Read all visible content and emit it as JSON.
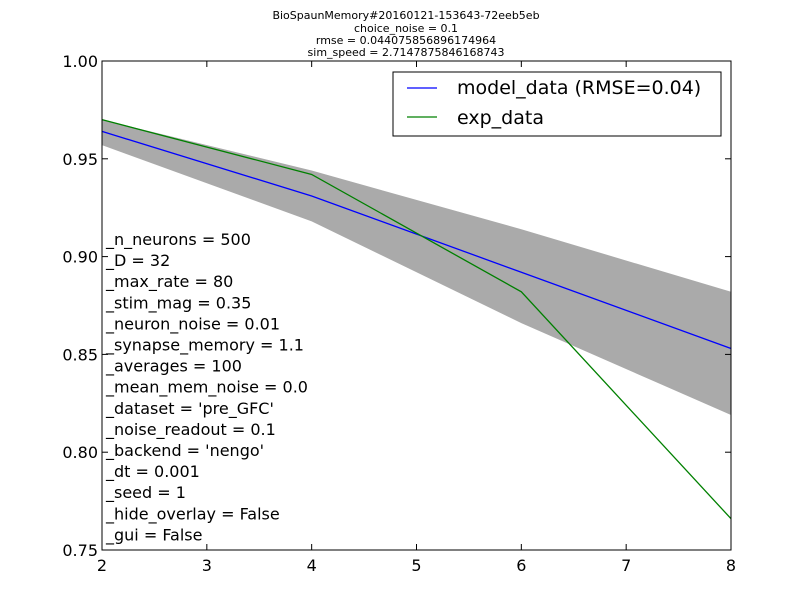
{
  "title_lines": [
    "BioSpaunMemory#20160121-153643-72eeb5eb",
    "choice_noise = 0.1",
    "rmse = 0.044075856896174964",
    "sim_speed = 2.7147875846168743"
  ],
  "params": [
    "_n_neurons = 500",
    "_D = 32",
    "_max_rate = 80",
    "_stim_mag = 0.35",
    "_neuron_noise = 0.01",
    "_synapse_memory = 1.1",
    "_averages = 100",
    "_mean_mem_noise = 0.0",
    "_dataset = 'pre_GFC'",
    "_noise_readout = 0.1",
    "_backend = 'nengo'",
    "_dt = 0.001",
    "_seed = 1",
    "_hide_overlay = False",
    "_gui = False"
  ],
  "chart_data": {
    "type": "line",
    "xlim": [
      2,
      8
    ],
    "ylim": [
      0.75,
      1.0
    ],
    "xticks": [
      2,
      3,
      4,
      5,
      6,
      7,
      8
    ],
    "yticks": [
      0.75,
      0.8,
      0.85,
      0.9,
      0.95,
      1.0
    ],
    "xtick_labels": [
      "2",
      "3",
      "4",
      "5",
      "6",
      "7",
      "8"
    ],
    "ytick_labels": [
      "0.75",
      "0.80",
      "0.85",
      "0.90",
      "0.95",
      "1.00"
    ],
    "grid": false,
    "legend_position": "top-right",
    "band": {
      "color": "#aaaaaa",
      "x": [
        2,
        4,
        6,
        8
      ],
      "lower": [
        0.957,
        0.918,
        0.866,
        0.819
      ],
      "upper": [
        0.97,
        0.944,
        0.914,
        0.882
      ]
    },
    "series": [
      {
        "name": "model_data (RMSE=0.04)",
        "color": "#0000ff",
        "x": [
          2,
          4,
          6,
          8
        ],
        "y": [
          0.964,
          0.931,
          0.892,
          0.853
        ]
      },
      {
        "name": "exp_data",
        "color": "#008000",
        "x": [
          2,
          4,
          6,
          8
        ],
        "y": [
          0.97,
          0.942,
          0.882,
          0.766
        ]
      }
    ]
  }
}
